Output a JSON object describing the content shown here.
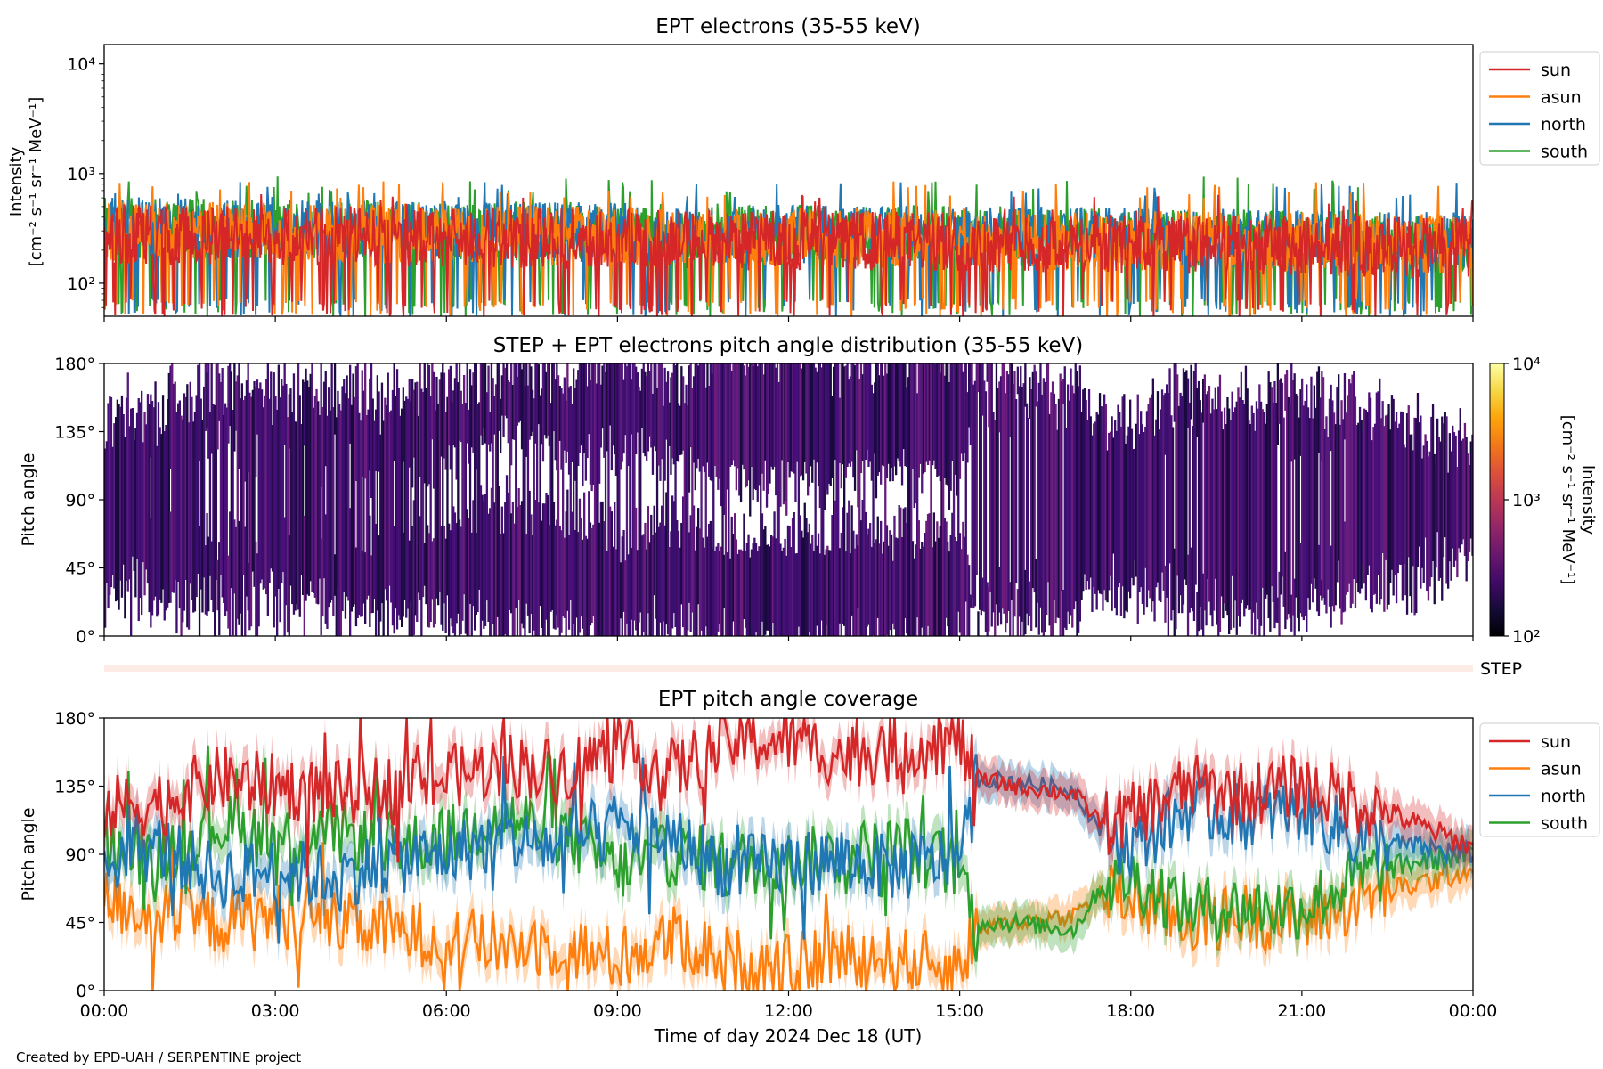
{
  "credit": "Created by EPD-UAH / SERPENTINE project",
  "colors": {
    "sun": "#d62728",
    "asun": "#ff7f0e",
    "north": "#1f77b4",
    "south": "#2ca02c"
  },
  "chart_data": [
    {
      "type": "line",
      "title": "EPT electrons (35-55 keV)",
      "ylabel": [
        "Intensity",
        "[cm⁻² s⁻¹ sr⁻¹ MeV⁻¹]"
      ],
      "yscale": "log",
      "ylim": [
        50,
        15000
      ],
      "yticks": [
        {
          "v": 100,
          "label": "10²"
        },
        {
          "v": 1000,
          "label": "10³"
        },
        {
          "v": 10000,
          "label": "10⁴"
        }
      ],
      "xlim": [
        0,
        24
      ],
      "legend": {
        "placement": "outside-right",
        "entries": [
          "sun",
          "asun",
          "north",
          "south"
        ]
      },
      "series": [
        {
          "name": "sun",
          "color": "#d62728",
          "typical": 280,
          "range": [
            60,
            650
          ]
        },
        {
          "name": "asun",
          "color": "#ff7f0e",
          "typical": 300,
          "range": [
            60,
            850
          ]
        },
        {
          "name": "north",
          "color": "#1f77b4",
          "typical": 320,
          "range": [
            60,
            850
          ]
        },
        {
          "name": "south",
          "color": "#2ca02c",
          "typical": 320,
          "range": [
            60,
            950
          ]
        }
      ]
    },
    {
      "type": "heatmap",
      "title": "STEP + EPT electrons pitch angle distribution (35-55 keV)",
      "ylabel": "Pitch angle",
      "ylim": [
        0,
        180
      ],
      "yticks": [
        0,
        45,
        90,
        135,
        180
      ],
      "yticklabels": [
        "0°",
        "45°",
        "90°",
        "135°",
        "180°"
      ],
      "colorbar": {
        "label": [
          "Intensity",
          "[cm⁻² s⁻¹ sr⁻¹ MeV⁻¹]"
        ],
        "scale": "log",
        "range": [
          100,
          10000
        ],
        "ticks": [
          {
            "v": 100,
            "label": "10²"
          },
          {
            "v": 1000,
            "label": "10³"
          },
          {
            "v": 10000,
            "label": "10⁴"
          }
        ]
      },
      "typical_intensity": 280
    },
    {
      "type": "line",
      "subplot": "STEP",
      "label": "STEP"
    },
    {
      "type": "line",
      "title": "EPT pitch angle coverage",
      "ylabel": "Pitch angle",
      "xlabel": "Time of day 2024 Dec 18 (UT)",
      "ylim": [
        0,
        180
      ],
      "yticks": [
        0,
        45,
        90,
        135,
        180
      ],
      "yticklabels": [
        "0°",
        "45°",
        "90°",
        "135°",
        "180°"
      ],
      "xlim": [
        0,
        24
      ],
      "xticks": [
        0,
        3,
        6,
        9,
        12,
        15,
        18,
        21,
        24
      ],
      "xticklabels": [
        "00:00",
        "03:00",
        "06:00",
        "09:00",
        "12:00",
        "15:00",
        "18:00",
        "21:00",
        "00:00"
      ],
      "legend": {
        "placement": "outside-right",
        "entries": [
          "sun",
          "asun",
          "north",
          "south"
        ]
      },
      "series": [
        {
          "name": "sun",
          "color": "#d62728",
          "x": [
            0,
            1,
            2,
            3,
            4,
            5,
            6,
            7,
            8,
            9,
            10,
            11,
            12,
            13,
            14,
            15,
            15.3,
            16,
            17,
            17.5,
            18,
            19,
            20,
            21,
            22,
            23,
            24
          ],
          "y": [
            120,
            125,
            140,
            135,
            130,
            135,
            140,
            150,
            145,
            160,
            145,
            165,
            165,
            155,
            160,
            165,
            140,
            135,
            130,
            110,
            115,
            135,
            130,
            135,
            125,
            110,
            95
          ]
        },
        {
          "name": "asun",
          "color": "#ff7f0e",
          "x": [
            0,
            1,
            2,
            3,
            4,
            5,
            6,
            7,
            8,
            9,
            10,
            11,
            12,
            13,
            14,
            15,
            15.3,
            16,
            17,
            17.5,
            18,
            19,
            20,
            21,
            22,
            23,
            24
          ],
          "y": [
            60,
            50,
            45,
            50,
            45,
            40,
            35,
            30,
            30,
            20,
            35,
            20,
            15,
            25,
            20,
            15,
            40,
            45,
            50,
            65,
            60,
            45,
            50,
            45,
            60,
            70,
            80
          ]
        },
        {
          "name": "north",
          "color": "#1f77b4",
          "x": [
            0,
            1,
            2,
            3,
            4,
            5,
            6,
            7,
            8,
            9,
            10,
            11,
            12,
            13,
            14,
            15,
            15.3,
            16,
            17,
            17.5,
            18,
            19,
            20,
            21,
            22,
            23,
            24
          ],
          "y": [
            85,
            95,
            75,
            80,
            75,
            85,
            90,
            100,
            95,
            110,
            100,
            80,
            85,
            85,
            80,
            90,
            140,
            138,
            132,
            105,
            95,
            120,
            115,
            120,
            100,
            95,
            90
          ]
        },
        {
          "name": "south",
          "color": "#2ca02c",
          "x": [
            0,
            1,
            2,
            3,
            4,
            5,
            6,
            7,
            8,
            9,
            10,
            11,
            12,
            13,
            14,
            15,
            15.3,
            16,
            17,
            17.5,
            18,
            19,
            20,
            21,
            22,
            23,
            24
          ],
          "y": [
            95,
            90,
            110,
            100,
            105,
            95,
            100,
            115,
            105,
            80,
            90,
            85,
            85,
            90,
            95,
            80,
            45,
            45,
            40,
            70,
            75,
            55,
            55,
            55,
            75,
            85,
            90
          ]
        }
      ]
    }
  ]
}
